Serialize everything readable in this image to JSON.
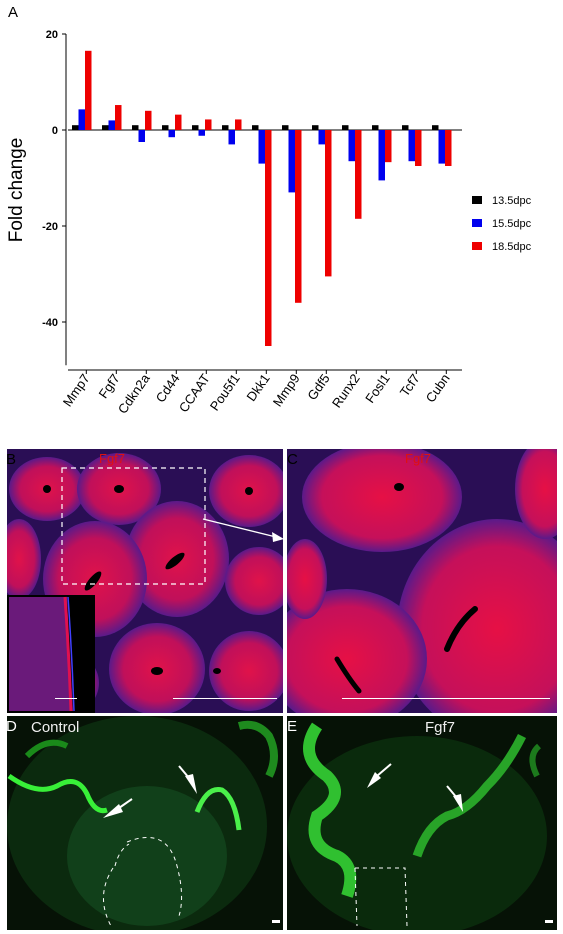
{
  "panels": {
    "A": "A",
    "B": "B",
    "C": "C",
    "D": "D",
    "E": "E"
  },
  "chart_data": {
    "type": "bar",
    "ylabel": "Fold change",
    "xlabel": "",
    "ylim": [
      -50,
      20
    ],
    "yticks": [
      20,
      0,
      -20,
      -40
    ],
    "categories": [
      "Mmp7",
      "Fgf7",
      "Cdkn2a",
      "Cd44",
      "CCAAT",
      "Pou5f1",
      "Dkk1",
      "Mmp9",
      "Gdf5",
      "Runx2",
      "Fosl1",
      "Tcf7",
      "Cubn"
    ],
    "series": [
      {
        "name": "13.5dpc",
        "color": "#000000",
        "values": [
          1,
          1,
          1,
          1,
          1,
          1,
          1,
          1,
          1,
          1,
          1,
          1,
          1
        ]
      },
      {
        "name": "15.5dpc",
        "color": "#0000ee",
        "values": [
          4.3,
          2,
          -2.5,
          -1.5,
          -1.2,
          -3,
          -7,
          -13,
          -3,
          -6.5,
          -10.5,
          -6.5,
          -7
        ]
      },
      {
        "name": "18.5dpc",
        "color": "#ee0000",
        "values": [
          16.5,
          5.2,
          4,
          3.2,
          2.2,
          2.2,
          -45,
          -36,
          -30.5,
          -18.5,
          -6.7,
          -7.5,
          -7.5
        ]
      }
    ],
    "legend_position": "right"
  },
  "micrographs": {
    "B_label": "Fgf7",
    "C_label": "Fgf7",
    "D_label": "Control",
    "E_label": "Fgf7"
  }
}
